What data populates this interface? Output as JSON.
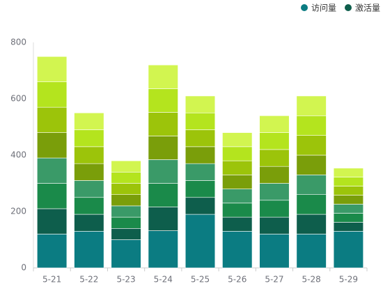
{
  "chart_data": {
    "type": "stacked-bar",
    "categories": [
      "5-21",
      "5-22",
      "5-23",
      "5-24",
      "5-25",
      "5-26",
      "5-27",
      "5-28",
      "5-29"
    ],
    "series": [
      {
        "name": "访问量",
        "color": "#0b7c82",
        "values": [
          120,
          130,
          100,
          132,
          190,
          130,
          120,
          120,
          130
        ]
      },
      {
        "name": "激活量",
        "color": "#0e5e4c",
        "values": [
          90,
          60,
          40,
          84,
          60,
          50,
          60,
          70,
          32
        ]
      },
      {
        "color": "#1a8a4a",
        "values": [
          90,
          60,
          40,
          84,
          60,
          50,
          60,
          70,
          32
        ]
      },
      {
        "color": "#3a9a68",
        "values": [
          90,
          60,
          40,
          84,
          60,
          50,
          60,
          70,
          32
        ]
      },
      {
        "color": "#7a9e0a",
        "values": [
          90,
          60,
          40,
          84,
          60,
          50,
          60,
          70,
          32
        ]
      },
      {
        "color": "#9cc40a",
        "values": [
          90,
          60,
          40,
          84,
          60,
          50,
          60,
          70,
          32
        ]
      },
      {
        "color": "#b4e41e",
        "values": [
          90,
          60,
          40,
          84,
          60,
          50,
          60,
          70,
          32
        ]
      },
      {
        "color": "#d2f550",
        "values": [
          90,
          60,
          40,
          84,
          60,
          50,
          60,
          70,
          32
        ]
      }
    ],
    "ylim": [
      0,
      800
    ],
    "yticks": [
      0,
      200,
      400,
      600,
      800
    ],
    "grid": false
  }
}
